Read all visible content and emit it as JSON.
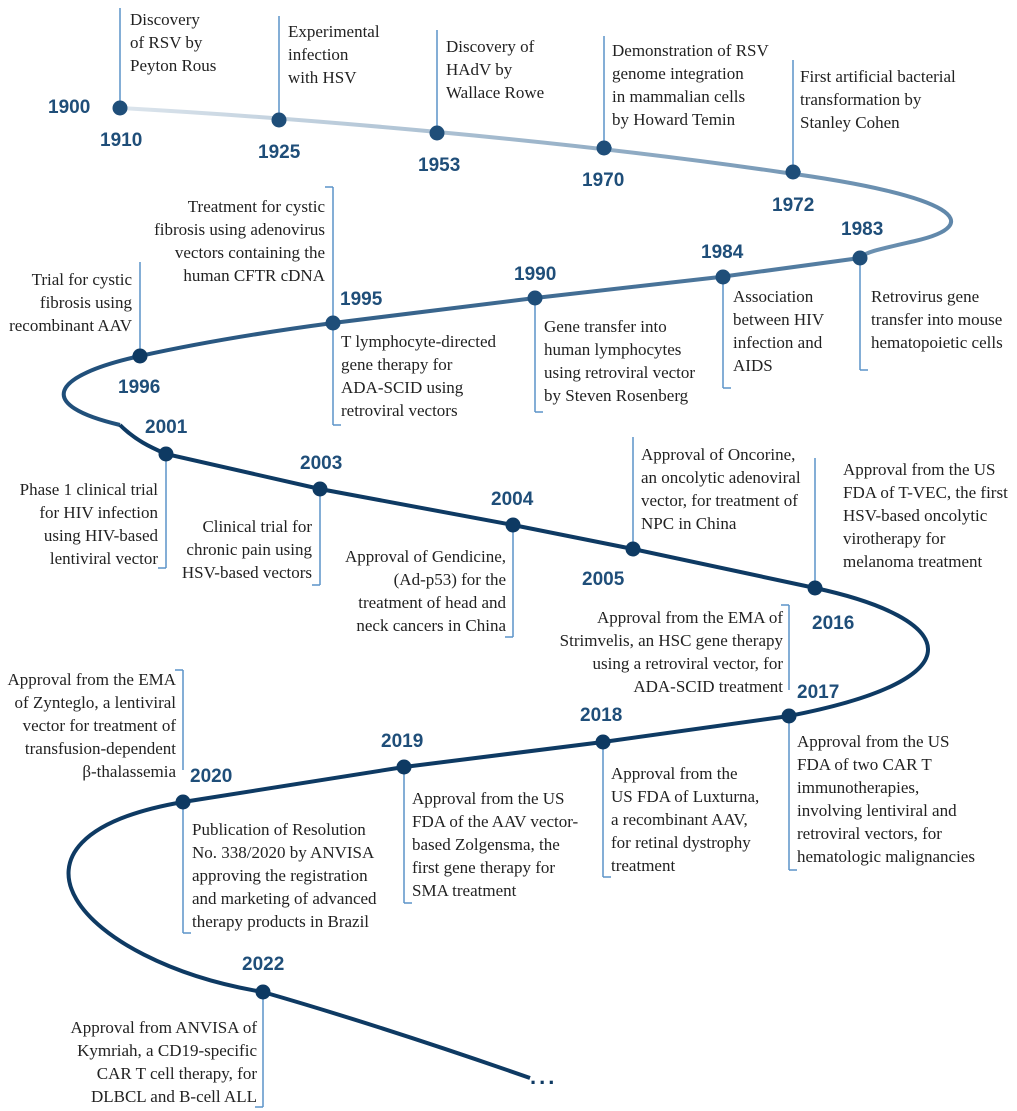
{
  "title": "",
  "continuation": "...",
  "colors": {
    "start": "#dfe7ee",
    "mid": "#5e86a9",
    "main": "#1f4e79",
    "dark": "#0e3a63",
    "connector": "#5b93c8",
    "text": "#222222"
  },
  "start_year": "1900",
  "events": [
    {
      "year": "1910",
      "lines": [
        "Discovery",
        "of RSV by",
        "Peyton Rous"
      ]
    },
    {
      "year": "1925",
      "lines": [
        "Experimental",
        "infection",
        "with HSV"
      ]
    },
    {
      "year": "1953",
      "lines": [
        "Discovery of",
        "HAdV by",
        "Wallace Rowe"
      ]
    },
    {
      "year": "1970",
      "lines": [
        "Demonstration of RSV",
        "genome integration",
        "in mammalian cells",
        "by Howard Temin"
      ]
    },
    {
      "year": "1972",
      "lines": [
        "First artificial bacterial",
        "transformation by",
        "Stanley Cohen"
      ]
    },
    {
      "year": "1983",
      "lines": [
        "Retrovirus gene",
        "transfer into mouse",
        "hematopoietic cells"
      ]
    },
    {
      "year": "1984",
      "lines": [
        "Association",
        "between HIV",
        "infection and",
        "AIDS"
      ]
    },
    {
      "year": "1990",
      "lines": [
        "Gene transfer into",
        "human lymphocytes",
        "using retroviral vector",
        "by Steven Rosenberg"
      ]
    },
    {
      "year": "1995",
      "lines": [
        "T lymphocyte-directed",
        "gene therapy for",
        "ADA-SCID using",
        "retroviral vectors"
      ],
      "upper_lines": [
        "Treatment for cystic",
        "fibrosis using adenovirus",
        "vectors containing the",
        "human CFTR cDNA"
      ]
    },
    {
      "year": "1996",
      "lines": [
        "Trial for cystic",
        "fibrosis using",
        "recombinant AAV"
      ]
    },
    {
      "year": "2001",
      "lines": [
        "Phase 1 clinical trial",
        "for HIV infection",
        "using HIV-based",
        "lentiviral vector"
      ]
    },
    {
      "year": "2003",
      "lines": [
        "Clinical trial for",
        "chronic pain using",
        "HSV-based vectors"
      ]
    },
    {
      "year": "2004",
      "lines": [
        "Approval of Gendicine,",
        "(Ad-p53) for the",
        "treatment of head and",
        "neck cancers in China"
      ]
    },
    {
      "year": "2005",
      "lines": [
        "Approval of Oncorine,",
        "an oncolytic adenoviral",
        "vector, for treatment of",
        "NPC in China"
      ]
    },
    {
      "year": "2016",
      "lines": [
        "Approval from the US",
        "FDA of T-VEC, the first",
        "HSV-based oncolytic",
        "virotherapy for",
        "melanoma treatment"
      ]
    },
    {
      "year": "2017",
      "lines": [
        "Approval from the US",
        "FDA of two CAR T",
        "immunotherapies,",
        "involving lentiviral and",
        "retroviral vectors, for",
        "hematologic malignancies"
      ],
      "upper_lines": [
        "Approval from the EMA of",
        "Strimvelis, an HSC gene therapy",
        "using a retroviral vector, for",
        "ADA-SCID treatment"
      ]
    },
    {
      "year": "2018",
      "lines": [
        "Approval from the",
        "US FDA of Luxturna,",
        "a recombinant AAV,",
        "for retinal dystrophy",
        "treatment"
      ]
    },
    {
      "year": "2019",
      "lines": [
        "Approval from the US",
        "FDA of the AAV vector-",
        "based Zolgensma, the",
        "first gene therapy for",
        "SMA treatment"
      ]
    },
    {
      "year": "2020",
      "lines": [
        "Publication of Resolution",
        "No. 338/2020 by ANVISA",
        "approving the registration",
        "and marketing of advanced",
        "therapy products in Brazil"
      ],
      "upper_lines": [
        "Approval from the EMA",
        "of Zynteglo, a lentiviral",
        "vector for treatment of",
        "transfusion-dependent",
        "β-thalassemia"
      ]
    },
    {
      "year": "2022",
      "lines": [
        "Approval from ANVISA of",
        "Kymriah, a CD19-specific",
        "CAR T cell therapy, for",
        "DLBCL and B-cell ALL"
      ]
    }
  ]
}
